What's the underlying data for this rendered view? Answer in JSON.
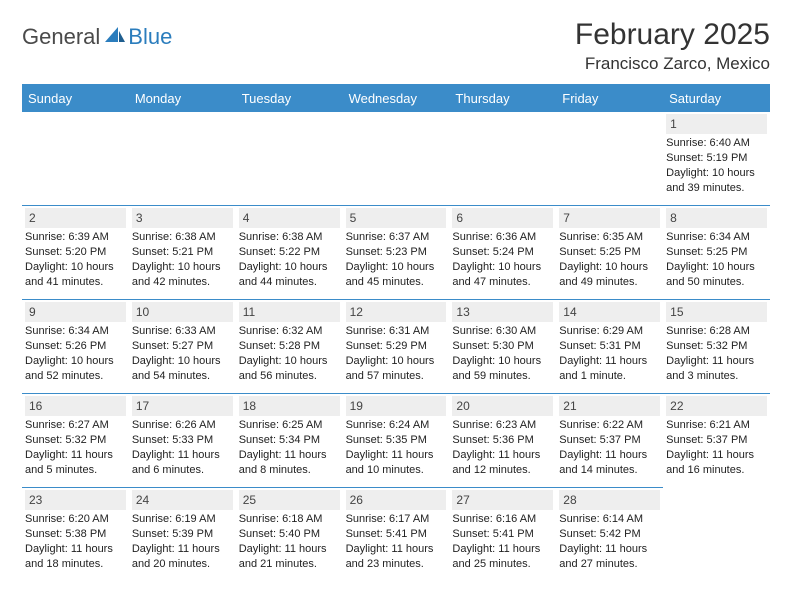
{
  "logo": {
    "text1": "General",
    "text2": "Blue"
  },
  "title": "February 2025",
  "location": "Francisco Zarco, Mexico",
  "colors": {
    "header_bg": "#3b8cc9",
    "header_fg": "#ffffff",
    "daynum_bg": "#eeeeee",
    "border": "#3b8cc9",
    "logo_blue": "#2b7dbd"
  },
  "day_headers": [
    "Sunday",
    "Monday",
    "Tuesday",
    "Wednesday",
    "Thursday",
    "Friday",
    "Saturday"
  ],
  "first_weekday_index": 6,
  "days": [
    {
      "n": 1,
      "sunrise": "6:40 AM",
      "sunset": "5:19 PM",
      "daylight": "10 hours and 39 minutes."
    },
    {
      "n": 2,
      "sunrise": "6:39 AM",
      "sunset": "5:20 PM",
      "daylight": "10 hours and 41 minutes."
    },
    {
      "n": 3,
      "sunrise": "6:38 AM",
      "sunset": "5:21 PM",
      "daylight": "10 hours and 42 minutes."
    },
    {
      "n": 4,
      "sunrise": "6:38 AM",
      "sunset": "5:22 PM",
      "daylight": "10 hours and 44 minutes."
    },
    {
      "n": 5,
      "sunrise": "6:37 AM",
      "sunset": "5:23 PM",
      "daylight": "10 hours and 45 minutes."
    },
    {
      "n": 6,
      "sunrise": "6:36 AM",
      "sunset": "5:24 PM",
      "daylight": "10 hours and 47 minutes."
    },
    {
      "n": 7,
      "sunrise": "6:35 AM",
      "sunset": "5:25 PM",
      "daylight": "10 hours and 49 minutes."
    },
    {
      "n": 8,
      "sunrise": "6:34 AM",
      "sunset": "5:25 PM",
      "daylight": "10 hours and 50 minutes."
    },
    {
      "n": 9,
      "sunrise": "6:34 AM",
      "sunset": "5:26 PM",
      "daylight": "10 hours and 52 minutes."
    },
    {
      "n": 10,
      "sunrise": "6:33 AM",
      "sunset": "5:27 PM",
      "daylight": "10 hours and 54 minutes."
    },
    {
      "n": 11,
      "sunrise": "6:32 AM",
      "sunset": "5:28 PM",
      "daylight": "10 hours and 56 minutes."
    },
    {
      "n": 12,
      "sunrise": "6:31 AM",
      "sunset": "5:29 PM",
      "daylight": "10 hours and 57 minutes."
    },
    {
      "n": 13,
      "sunrise": "6:30 AM",
      "sunset": "5:30 PM",
      "daylight": "10 hours and 59 minutes."
    },
    {
      "n": 14,
      "sunrise": "6:29 AM",
      "sunset": "5:31 PM",
      "daylight": "11 hours and 1 minute."
    },
    {
      "n": 15,
      "sunrise": "6:28 AM",
      "sunset": "5:32 PM",
      "daylight": "11 hours and 3 minutes."
    },
    {
      "n": 16,
      "sunrise": "6:27 AM",
      "sunset": "5:32 PM",
      "daylight": "11 hours and 5 minutes."
    },
    {
      "n": 17,
      "sunrise": "6:26 AM",
      "sunset": "5:33 PM",
      "daylight": "11 hours and 6 minutes."
    },
    {
      "n": 18,
      "sunrise": "6:25 AM",
      "sunset": "5:34 PM",
      "daylight": "11 hours and 8 minutes."
    },
    {
      "n": 19,
      "sunrise": "6:24 AM",
      "sunset": "5:35 PM",
      "daylight": "11 hours and 10 minutes."
    },
    {
      "n": 20,
      "sunrise": "6:23 AM",
      "sunset": "5:36 PM",
      "daylight": "11 hours and 12 minutes."
    },
    {
      "n": 21,
      "sunrise": "6:22 AM",
      "sunset": "5:37 PM",
      "daylight": "11 hours and 14 minutes."
    },
    {
      "n": 22,
      "sunrise": "6:21 AM",
      "sunset": "5:37 PM",
      "daylight": "11 hours and 16 minutes."
    },
    {
      "n": 23,
      "sunrise": "6:20 AM",
      "sunset": "5:38 PM",
      "daylight": "11 hours and 18 minutes."
    },
    {
      "n": 24,
      "sunrise": "6:19 AM",
      "sunset": "5:39 PM",
      "daylight": "11 hours and 20 minutes."
    },
    {
      "n": 25,
      "sunrise": "6:18 AM",
      "sunset": "5:40 PM",
      "daylight": "11 hours and 21 minutes."
    },
    {
      "n": 26,
      "sunrise": "6:17 AM",
      "sunset": "5:41 PM",
      "daylight": "11 hours and 23 minutes."
    },
    {
      "n": 27,
      "sunrise": "6:16 AM",
      "sunset": "5:41 PM",
      "daylight": "11 hours and 25 minutes."
    },
    {
      "n": 28,
      "sunrise": "6:14 AM",
      "sunset": "5:42 PM",
      "daylight": "11 hours and 27 minutes."
    }
  ],
  "labels": {
    "sunrise": "Sunrise:",
    "sunset": "Sunset:",
    "daylight": "Daylight:"
  }
}
